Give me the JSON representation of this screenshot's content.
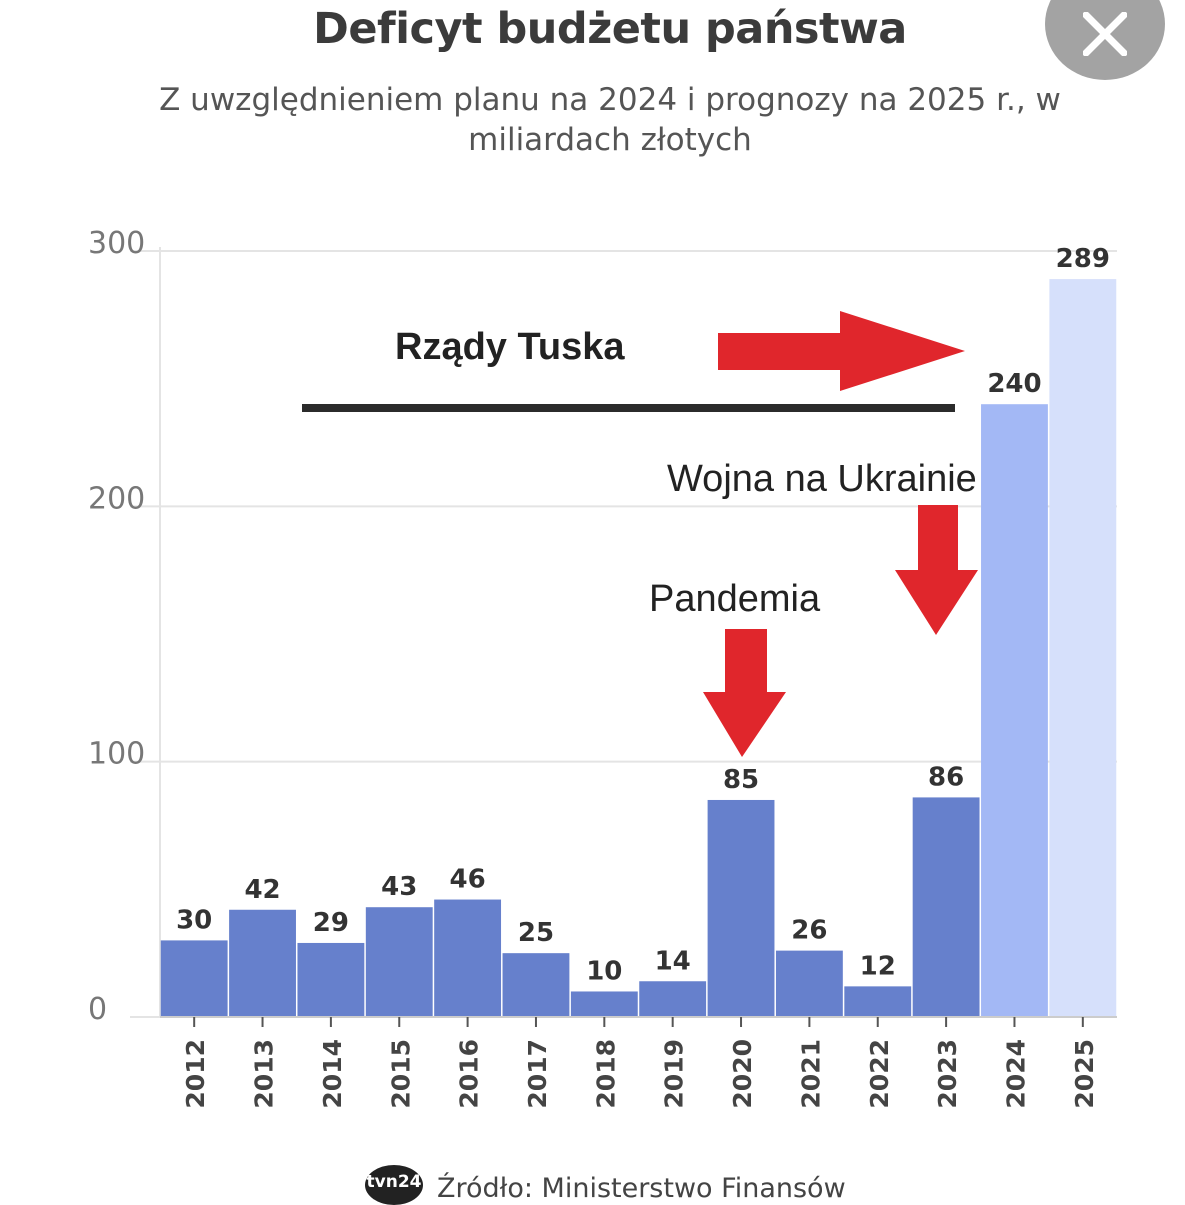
{
  "title": "Deficyt budżetu państwa",
  "subtitle": "Z uwzględnieniem planu na 2024 i prognozy na 2025 r., w miliardach złotych",
  "close_icon": "close-x-icon",
  "annotations": {
    "tusk": "Rządy Tuska",
    "war": "Wojna na Ukrainie",
    "pandemic": "Pandemia"
  },
  "source": {
    "logo": "tvn24",
    "text": "Źródło: Ministerstwo Finansów"
  },
  "colors": {
    "bar_actual": "#6680cc",
    "bar_plan": "#a3b8f5",
    "bar_forecast": "#d6e0fb",
    "arrow": "#e0262c"
  },
  "chart_data": {
    "type": "bar",
    "title": "Deficyt budżetu państwa",
    "subtitle": "Z uwzględnieniem planu na 2024 i prognozy na 2025 r., w miliardach złotych",
    "categories": [
      "2012",
      "2013",
      "2014",
      "2015",
      "2016",
      "2017",
      "2018",
      "2019",
      "2020",
      "2021",
      "2022",
      "2023",
      "2024",
      "2025"
    ],
    "values": [
      30,
      42,
      29,
      43,
      46,
      25,
      10,
      14,
      85,
      26,
      12,
      86,
      240,
      289
    ],
    "value_labels": [
      "30",
      "42",
      "29",
      "43",
      "46",
      "25",
      "10",
      "14",
      "85",
      "26",
      "12",
      "86",
      "240",
      "289"
    ],
    "ylim": [
      0,
      300
    ],
    "yticks": [
      0,
      100,
      200,
      300
    ],
    "ytick_labels": [
      "0",
      "100",
      "200",
      "300"
    ],
    "grid": true,
    "xlabel": "",
    "ylabel": ""
  }
}
